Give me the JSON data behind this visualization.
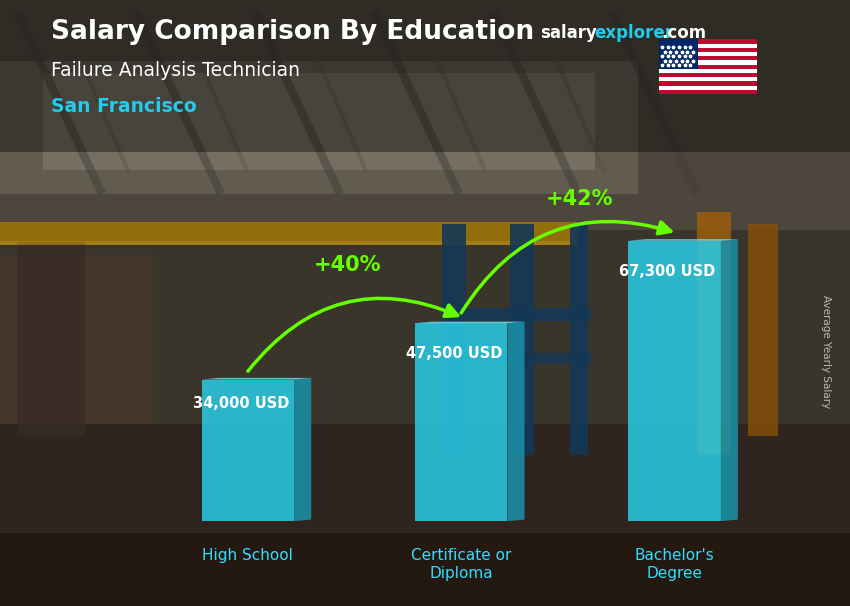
{
  "title1": "Salary Comparison By Education",
  "title2": "Failure Analysis Technician",
  "title3": "San Francisco",
  "categories": [
    "High School",
    "Certificate or\nDiploma",
    "Bachelor's\nDegree"
  ],
  "values": [
    34000,
    47500,
    67300
  ],
  "labels": [
    "34,000 USD",
    "47,500 USD",
    "67,300 USD"
  ],
  "pct_labels": [
    "+40%",
    "+42%"
  ],
  "bar_face_color": "#29c8e0",
  "bar_side_color": "#1a90a8",
  "bar_top_color": "#7ae8f8",
  "bar_alpha": 0.88,
  "arrow_color": "#66ff00",
  "label_color": "#ffffff",
  "cat_color": "#33ddff",
  "title1_color": "#ffffff",
  "title2_color": "#ffffff",
  "title3_color": "#22ccee",
  "watermark_salary_color": "#ffffff",
  "watermark_explorer_color": "#22ccee",
  "watermark_com_color": "#ffffff",
  "ylabel_color": "#bbbbaa",
  "ylabel_text": "Average Yearly Salary",
  "bg_top_color": "#3a3530",
  "bg_bottom_color": "#5a5040",
  "ylim_max": 80000,
  "bar_positions": [
    1.0,
    2.5,
    4.0
  ],
  "bar_width": 0.65,
  "bar_depth": 0.12
}
